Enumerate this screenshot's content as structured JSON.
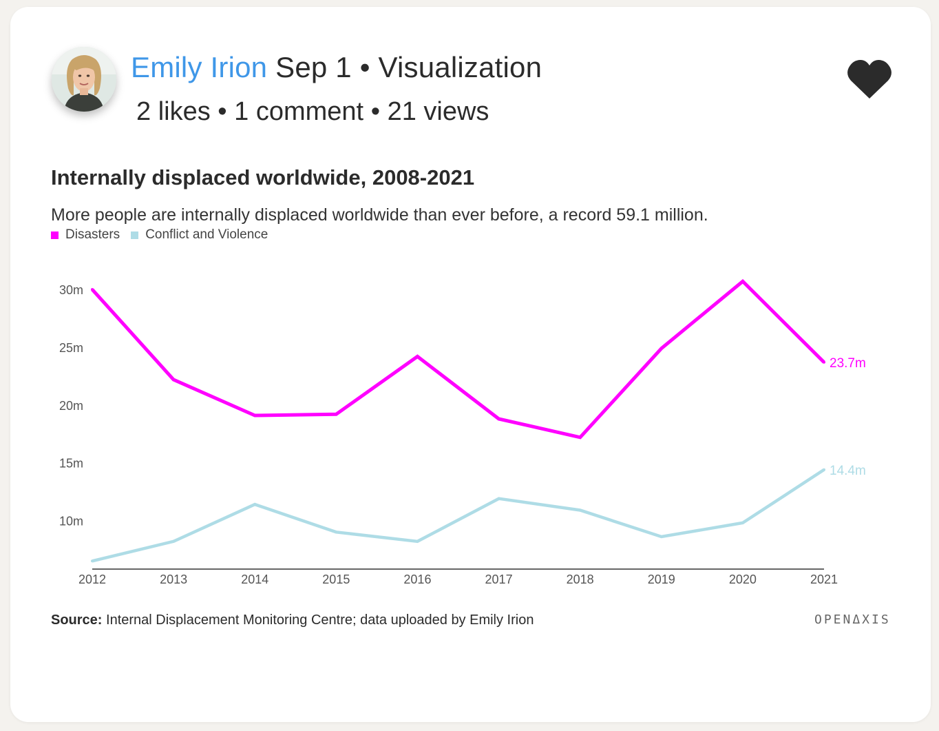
{
  "post": {
    "author": "Emily Irion",
    "date": "Sep 1",
    "separator": "•",
    "category": "Visualization",
    "likes": "2 likes",
    "comments": "1 comment",
    "views": "21 views"
  },
  "icons": {
    "like": "heart-icon",
    "avatar": "avatar-photo"
  },
  "colors": {
    "author": "#3f97e8",
    "disasters": "#ff00ff",
    "conflict": "#aedce6",
    "heart": "#2b2b2b"
  },
  "chart_data": {
    "type": "line",
    "title": "Internally displaced worldwide, 2008-2021",
    "subtitle": "More people are internally displaced worldwide than ever before, a record 59.1 million.",
    "x": [
      "2012",
      "2013",
      "2014",
      "2015",
      "2016",
      "2017",
      "2018",
      "2019",
      "2020",
      "2021"
    ],
    "series": [
      {
        "name": "Disasters",
        "color": "#ff00ff",
        "values": [
          30.0,
          22.2,
          19.1,
          19.2,
          24.2,
          18.8,
          17.2,
          24.9,
          30.7,
          23.7
        ],
        "end_label": "23.7m"
      },
      {
        "name": "Conflict and Violence",
        "color": "#aedce6",
        "values": [
          6.5,
          8.2,
          11.4,
          9.0,
          8.2,
          11.9,
          10.9,
          8.6,
          9.8,
          14.4
        ],
        "end_label": "14.4m"
      }
    ],
    "yticks": [
      {
        "value": 10,
        "label": "10m"
      },
      {
        "value": 15,
        "label": "15m"
      },
      {
        "value": 20,
        "label": "20m"
      },
      {
        "value": 25,
        "label": "25m"
      },
      {
        "value": 30,
        "label": "30m"
      }
    ],
    "ylim": [
      5.8,
      31.5
    ],
    "grid": false,
    "legend_position": "top-left",
    "xlabel": "",
    "ylabel": ""
  },
  "footer": {
    "source_label": "Source:",
    "source_text": "Internal Displacement Monitoring Centre; data uploaded by Emily Irion",
    "brand": "OPENΔXIS"
  }
}
